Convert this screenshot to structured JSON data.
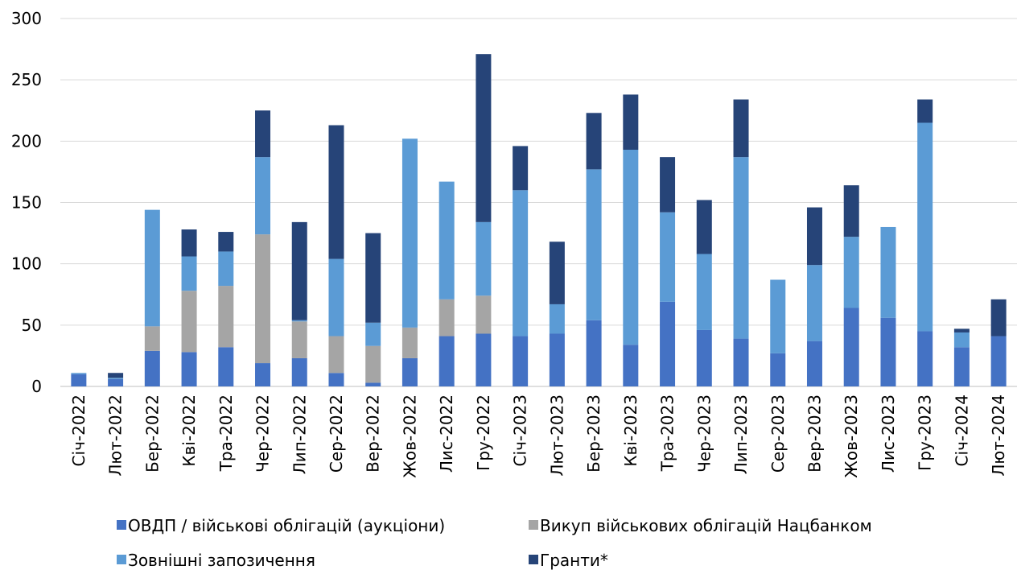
{
  "chart_data": {
    "type": "stacked_bar",
    "categories": [
      "Січ-2022",
      "Лют-2022",
      "Бер-2022",
      "Кві-2022",
      "Тра-2022",
      "Чер-2022",
      "Лип-2022",
      "Сер-2022",
      "Вер-2022",
      "Жов-2022",
      "Лис-2022",
      "Гру-2022",
      "Січ-2023",
      "Лют-2023",
      "Бер-2023",
      "Кві-2023",
      "Тра-2023",
      "Чер-2023",
      "Лип-2023",
      "Сер-2023",
      "Вер-2023",
      "Жов-2023",
      "Лис-2023",
      "Гру-2023",
      "Січ-2024",
      "Лют-2024"
    ],
    "series": [
      {
        "name": "ОВДП / військові облігацій (аукціони)",
        "color": "#4472c4",
        "values": [
          10,
          6,
          29,
          28,
          32,
          19,
          23,
          11,
          3,
          23,
          41,
          43,
          41,
          43,
          54,
          34,
          69,
          46,
          39,
          27,
          37,
          64,
          56,
          45,
          32,
          41
        ]
      },
      {
        "name": "Викуп військових облігацій Нацбанком",
        "color": "#a5a5a5",
        "values": [
          0,
          0,
          20,
          50,
          50,
          105,
          30,
          30,
          30,
          25,
          30,
          31,
          0,
          0,
          0,
          0,
          0,
          0,
          0,
          0,
          0,
          0,
          0,
          0,
          0,
          0
        ]
      },
      {
        "name": "Зовнішні запозичення",
        "color": "#5b9bd5",
        "values": [
          1,
          1,
          95,
          28,
          28,
          63,
          1,
          63,
          19,
          154,
          96,
          60,
          119,
          24,
          123,
          159,
          73,
          62,
          148,
          60,
          62,
          58,
          74,
          170,
          12,
          0
        ]
      },
      {
        "name": "Гранти*",
        "color": "#264478",
        "values": [
          0,
          4,
          0,
          22,
          16,
          38,
          80,
          109,
          73,
          0,
          0,
          137,
          36,
          51,
          46,
          45,
          45,
          44,
          47,
          0,
          47,
          42,
          0,
          19,
          3,
          30
        ]
      }
    ],
    "ylim": [
      0,
      300
    ],
    "yticks": [
      0,
      50,
      100,
      150,
      200,
      250,
      300
    ],
    "grid": true
  }
}
